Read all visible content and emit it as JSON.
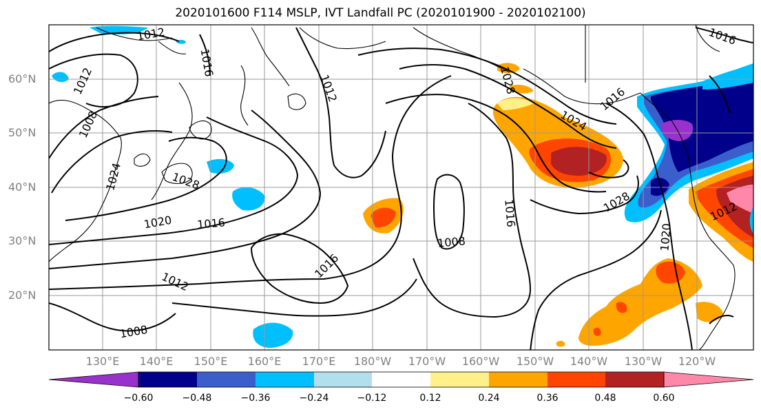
{
  "title": "2020101600 F114 MSLP, IVT Landfall PC (2020101900 - 2020102100)",
  "lat_labels": [
    "60°N",
    "50°N",
    "40°N",
    "30°N",
    "20°N"
  ],
  "lon_labels": [
    "130°E",
    "140°E",
    "150°E",
    "160°E",
    "170°E",
    "180°W",
    "170°W",
    "160°W",
    "150°W",
    "140°W",
    "130°W",
    "120°W"
  ],
  "colorbar": {
    "colors": [
      "#9932cc",
      "#00008b",
      "#3a5fcd",
      "#00bfff",
      "#b2dfee",
      "#ffffff",
      "#fff08a",
      "#ffa500",
      "#ff4500",
      "#b22222",
      "#ff88aa"
    ],
    "tick_labels": [
      "−0.60",
      "−0.48",
      "−0.36",
      "−0.24",
      "−0.12",
      "0.12",
      "0.24",
      "0.36",
      "0.48",
      "0.60"
    ]
  },
  "contour_labels": [
    {
      "text": "1012"
    },
    {
      "text": "1016"
    },
    {
      "text": "1012"
    },
    {
      "text": "1008"
    },
    {
      "text": "1024"
    },
    {
      "text": "1028"
    },
    {
      "text": "1020"
    },
    {
      "text": "1016"
    },
    {
      "text": "1012"
    },
    {
      "text": "1008"
    },
    {
      "text": "1016"
    },
    {
      "text": "1012"
    },
    {
      "text": "1008"
    },
    {
      "text": "1016"
    },
    {
      "text": "1024"
    },
    {
      "text": "1028"
    },
    {
      "text": "1028"
    },
    {
      "text": "1020"
    },
    {
      "text": "1012"
    },
    {
      "text": "1016"
    },
    {
      "text": "1016"
    }
  ]
}
